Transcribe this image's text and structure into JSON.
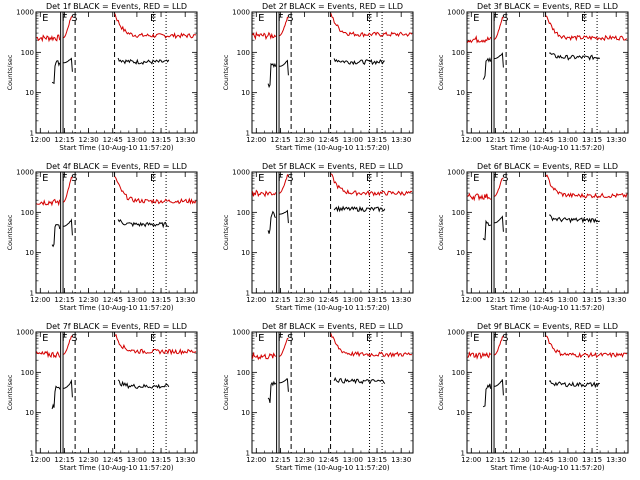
{
  "chart_data": {
    "type": "line",
    "panel_title_suffix": "BLACK = Events, RED = LLD",
    "xlabel": "Start Time (10-Aug-10 11:57:20)",
    "ylabel": "Counts/sec",
    "yscale": "log",
    "ylim": [
      1,
      1000
    ],
    "ytick_labels": [
      "1",
      "10",
      "100",
      "1000"
    ],
    "xlim_minutes": [
      0,
      100
    ],
    "xtick_labels": [
      "12:00",
      "12:15",
      "12:30",
      "12:45",
      "13:00",
      "13:15",
      "13:30"
    ],
    "series_colors": {
      "events": "#000000",
      "lld": "#d40000"
    },
    "markers": [
      {
        "label": "E",
        "x": 5.8
      },
      {
        "label": "F",
        "x": 17.8
      },
      {
        "label": "S",
        "x": 23.8
      },
      {
        "label": "E",
        "x": 72.8
      }
    ],
    "solid_vlines": [
      15.3,
      16.8
    ],
    "dashed_vlines": [
      24.3,
      48.8
    ],
    "dotted_vlines": [
      73.0,
      80.8
    ],
    "panels": [
      {
        "detector": "Det 1f",
        "lld": {
          "pre": 230,
          "spike": 780,
          "post_start": 900,
          "post": 260
        },
        "events": {
          "pre": 55,
          "spike": 72,
          "post_start": 70,
          "post": 58
        }
      },
      {
        "detector": "Det 2f",
        "lld": {
          "pre": 260,
          "spike": 700,
          "post_start": 900,
          "post": 280
        },
        "events": {
          "pre": 45,
          "spike": 62,
          "post_start": 70,
          "post": 58
        }
      },
      {
        "detector": "Det 3f",
        "lld": {
          "pre": 210,
          "spike": 700,
          "post_start": 900,
          "post": 230
        },
        "events": {
          "pre": 70,
          "spike": 95,
          "post_start": 95,
          "post": 75
        }
      },
      {
        "detector": "Det 4f",
        "lld": {
          "pre": 180,
          "spike": 700,
          "post_start": 800,
          "post": 190
        },
        "events": {
          "pre": 45,
          "spike": 65,
          "post_start": 65,
          "post": 50
        }
      },
      {
        "detector": "Det 5f",
        "lld": {
          "pre": 300,
          "spike": 800,
          "post_start": 900,
          "post": 300
        },
        "events": {
          "pre": 90,
          "spike": 110,
          "post_start": 130,
          "post": 120
        }
      },
      {
        "detector": "Det 6f",
        "lld": {
          "pre": 250,
          "spike": 700,
          "post_start": 900,
          "post": 260
        },
        "events": {
          "pre": 55,
          "spike": 80,
          "post_start": 80,
          "post": 65
        }
      },
      {
        "detector": "Det 7f",
        "lld": {
          "pre": 280,
          "spike": 800,
          "post_start": 900,
          "post": 330
        },
        "events": {
          "pre": 40,
          "spike": 60,
          "post_start": 60,
          "post": 45
        }
      },
      {
        "detector": "Det 8f",
        "lld": {
          "pre": 250,
          "spike": 700,
          "post_start": 900,
          "post": 280
        },
        "events": {
          "pre": 55,
          "spike": 70,
          "post_start": 70,
          "post": 60
        }
      },
      {
        "detector": "Det 9f",
        "lld": {
          "pre": 270,
          "spike": 750,
          "post_start": 900,
          "post": 270
        },
        "events": {
          "pre": 45,
          "spike": 65,
          "post_start": 60,
          "post": 50
        }
      }
    ]
  }
}
